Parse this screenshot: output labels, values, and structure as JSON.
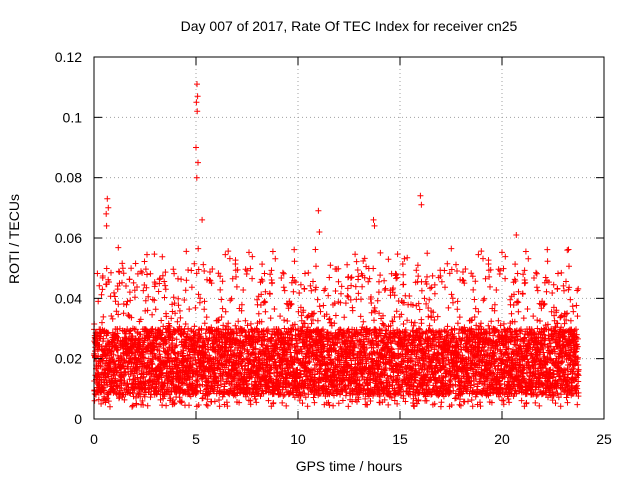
{
  "chart_data": {
    "type": "scatter",
    "title": "Day 007 of 2017, Rate Of TEC Index for receiver cn25",
    "xlabel": "GPS time / hours",
    "ylabel": "ROTI / TECUs",
    "xlim": [
      0,
      25
    ],
    "ylim": [
      0,
      0.12
    ],
    "grid": true,
    "marker": "+",
    "colors": {
      "points": "#ff0000",
      "grid": "#a0a0a0",
      "axis": "#000000",
      "background": "#ffffff"
    },
    "xticks": [
      0,
      5,
      10,
      15,
      20,
      25
    ],
    "xtick_labels": [
      "0",
      "5",
      "10",
      "15",
      "20",
      "25"
    ],
    "yticks": [
      0,
      0.02,
      0.04,
      0.06,
      0.08,
      0.1,
      0.12
    ],
    "ytick_labels": [
      "0",
      "0.02",
      "0.04",
      "0.06",
      "0.08",
      "0.1",
      "0.12"
    ],
    "series": [
      {
        "name": "ROTI",
        "x_range": [
          0,
          23.75
        ],
        "sample_interval_hours": 0.015,
        "typical_band": [
          0.008,
          0.03
        ],
        "spikes": [
          {
            "x": 0.65,
            "y": 0.073
          },
          {
            "x": 0.7,
            "y": 0.07
          },
          {
            "x": 0.6,
            "y": 0.068
          },
          {
            "x": 0.62,
            "y": 0.064
          },
          {
            "x": 5.05,
            "y": 0.111
          },
          {
            "x": 5.08,
            "y": 0.107
          },
          {
            "x": 5.02,
            "y": 0.105
          },
          {
            "x": 5.06,
            "y": 0.102
          },
          {
            "x": 5.0,
            "y": 0.09
          },
          {
            "x": 5.1,
            "y": 0.085
          },
          {
            "x": 5.04,
            "y": 0.08
          },
          {
            "x": 5.3,
            "y": 0.066
          },
          {
            "x": 11.0,
            "y": 0.069
          },
          {
            "x": 11.05,
            "y": 0.062
          },
          {
            "x": 13.7,
            "y": 0.066
          },
          {
            "x": 13.75,
            "y": 0.064
          },
          {
            "x": 16.0,
            "y": 0.074
          },
          {
            "x": 16.05,
            "y": 0.071
          },
          {
            "x": 20.7,
            "y": 0.061
          },
          {
            "x": 23.2,
            "y": 0.056
          }
        ]
      }
    ]
  }
}
